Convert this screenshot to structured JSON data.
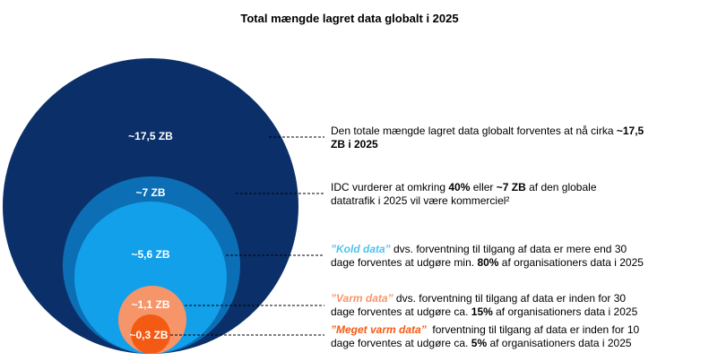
{
  "title": "Total mængde lagret data globalt i 2025",
  "circles": [
    {
      "label": "~17,5 ZB"
    },
    {
      "label": "~7 ZB"
    },
    {
      "label": "~5,6 ZB"
    },
    {
      "label": "~1,1 ZB"
    },
    {
      "label": "~0,3 ZB"
    }
  ],
  "notes": [
    {
      "lines": [
        [
          "Den totale mængde lagret data globalt forventes at nå cirka ",
          "~17,5"
        ],
        [
          "ZB i 2025"
        ]
      ]
    },
    {
      "lines": [
        [
          "IDC vurderer at omkring ",
          "40%",
          " eller ",
          "~7 ZB",
          " af den globale"
        ],
        [
          "datatrafik i 2025 vil være kommerciel²"
        ]
      ]
    },
    {
      "lines": [
        [
          "”Kold data”",
          " dvs. forventning til tilgang af data er mere end 30"
        ],
        [
          "dage forventes at udgøre min. ",
          "80%",
          " af organisationers data i 2025"
        ]
      ]
    },
    {
      "lines": [
        [
          "”Varm data”",
          " dvs. forventning til tilgang af data er inden for 30"
        ],
        [
          "dage forventes at udgøre ca. ",
          "15%",
          " af organisationers data i 2025"
        ]
      ]
    },
    {
      "lines": [
        [
          "”Meget varm data”",
          "  forventning til tilgang af data er inden for 10"
        ],
        [
          "dage forventes at udgøre ca. ",
          "5%",
          " af organisationers data i 2025"
        ]
      ]
    }
  ]
}
